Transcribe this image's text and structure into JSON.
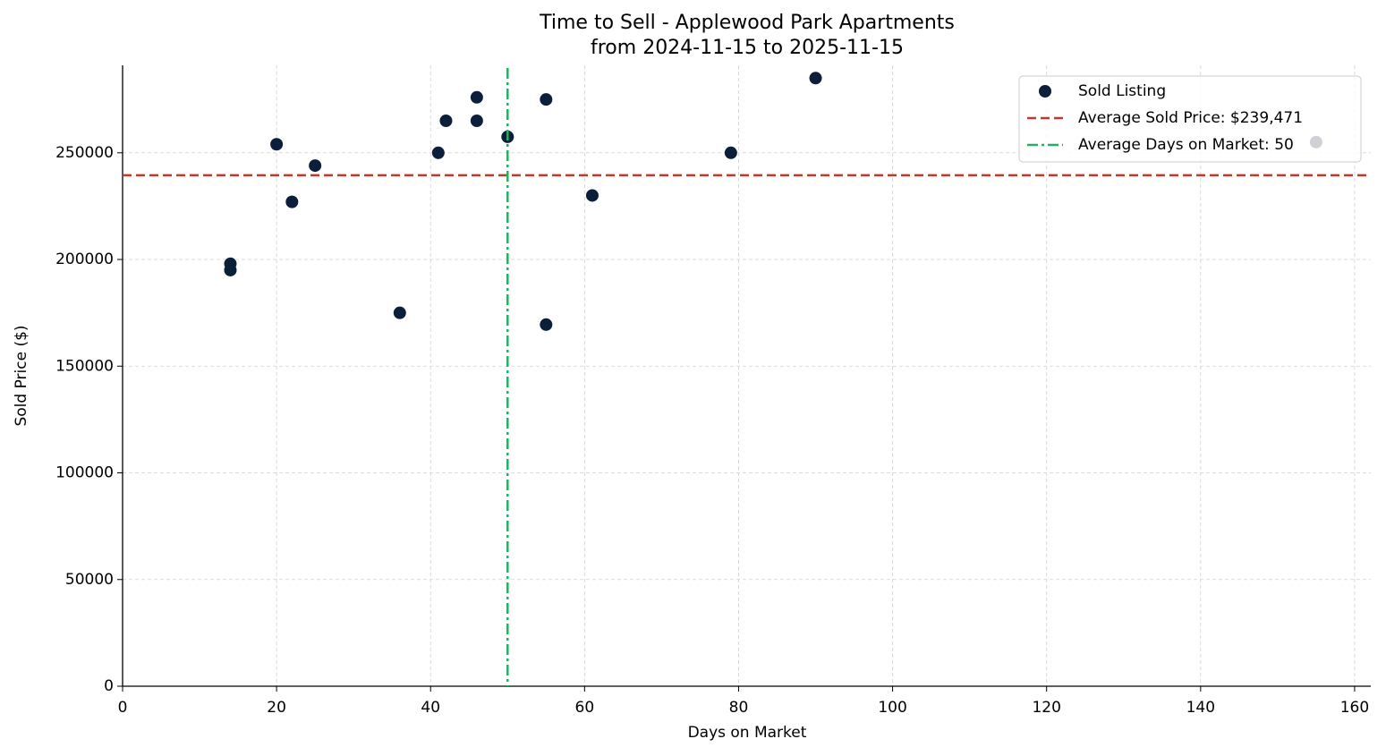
{
  "chart_data": {
    "type": "scatter",
    "title": "Time to Sell - Applewood Park Apartments",
    "subtitle": "from 2024-11-15 to 2025-11-15",
    "x_label": "Days on Market",
    "y_label": "Sold Price ($)",
    "series": [
      {
        "name": "Sold Listing",
        "color": "#0b1f3a",
        "x": [
          14,
          14,
          20,
          22,
          25,
          36,
          41,
          42,
          46,
          46,
          50,
          55,
          55,
          61,
          79,
          90,
          155
        ],
        "values": [
          198000,
          195000,
          254000,
          227000,
          244000,
          175000,
          250000,
          265000,
          276000,
          265000,
          257500,
          275000,
          169500,
          230000,
          250000,
          285000,
          255000
        ]
      }
    ],
    "reference_lines": [
      {
        "name": "Average Sold Price: $239,471",
        "orientation": "horizontal",
        "value": 239471,
        "color": "#c0392b",
        "style": "dashed"
      },
      {
        "name": "Average Days on Market: 50",
        "orientation": "vertical",
        "value": 50,
        "color": "#27ae60",
        "style": "dashdot"
      }
    ],
    "xlim": [
      0,
      162.1
    ],
    "ylim": [
      0,
      291000
    ],
    "xticks": [
      0,
      20,
      40,
      60,
      80,
      100,
      120,
      140,
      160
    ],
    "yticks": [
      0,
      50000,
      100000,
      150000,
      200000,
      250000
    ],
    "grid": true,
    "legend": "upper right"
  }
}
